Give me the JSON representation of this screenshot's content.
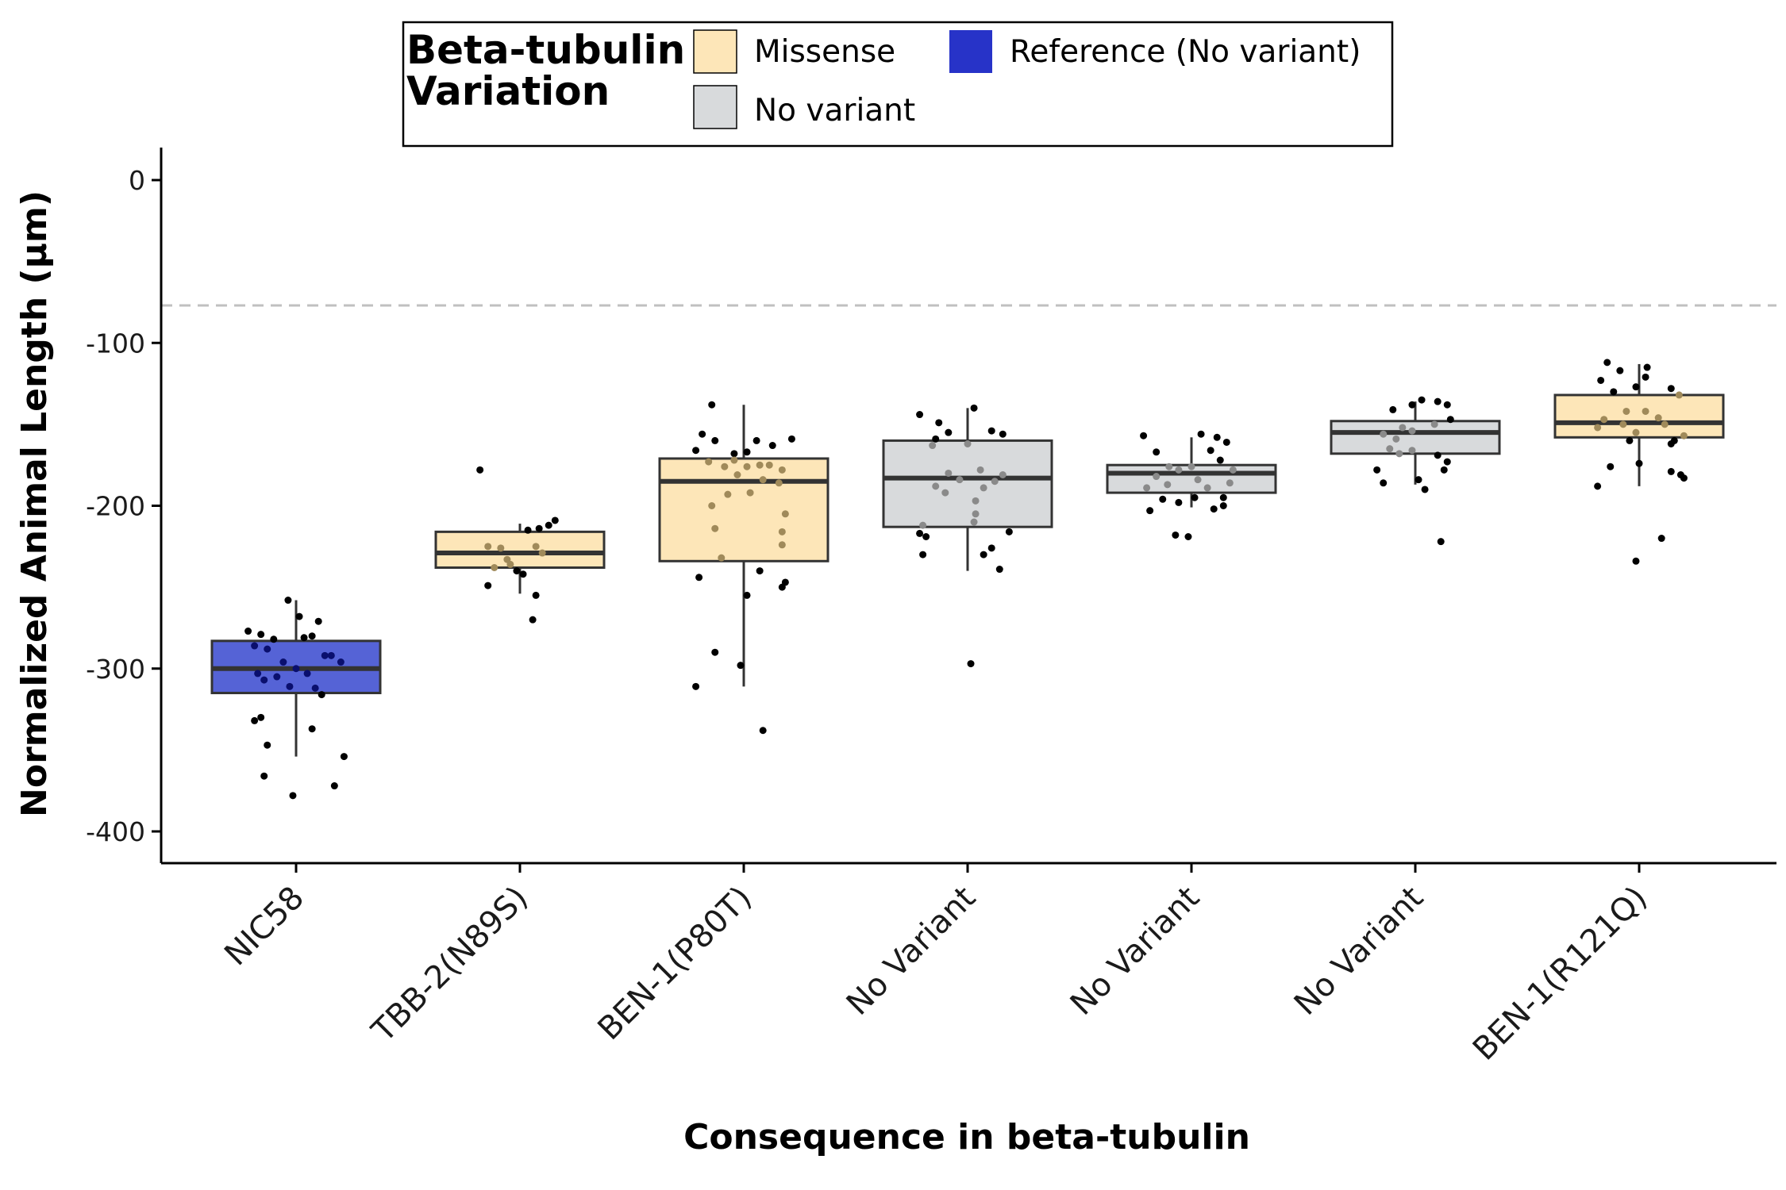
{
  "chart_data": {
    "type": "boxplot",
    "title": "",
    "xlabel": "Consequence in beta-tubulin",
    "ylabel": "Normalized Animal Length (µm)",
    "ylim": [
      -420,
      20
    ],
    "yticks": [
      0,
      -100,
      -200,
      -300,
      -400
    ],
    "grid": false,
    "reference_line": {
      "y": -77,
      "style": "dashed",
      "color": "#c0c0c0"
    },
    "legend": {
      "title_lines": [
        "Beta-tubulin",
        "Variation"
      ],
      "placement": "top",
      "entries": [
        {
          "label": "Missense",
          "color": "#fde6b8"
        },
        {
          "label": "No variant",
          "color": "#d8dadc"
        },
        {
          "label": "Reference (No variant)",
          "color": "#2733c8"
        }
      ]
    },
    "categories": [
      "NIC58",
      "TBB-2(N89S)",
      "BEN-1(P80T)",
      "No Variant",
      "No Variant",
      "No Variant",
      "BEN-1(R121Q)"
    ],
    "boxes": [
      {
        "category": "NIC58",
        "group": "Reference (No variant)",
        "fill": "#5563d6",
        "q1": -315,
        "median": -300,
        "q3": -283,
        "whisker_low": -354,
        "whisker_high": -258,
        "points": [
          [
            -0.3,
            -277
          ],
          [
            -0.22,
            -279
          ],
          [
            -0.14,
            -282
          ],
          [
            -0.05,
            -258
          ],
          [
            0.02,
            -268
          ],
          [
            0.1,
            -280
          ],
          [
            0.14,
            -271
          ],
          [
            0.22,
            -292
          ],
          [
            0.28,
            -296
          ],
          [
            -0.26,
            -286
          ],
          [
            -0.18,
            -288
          ],
          [
            -0.08,
            -296
          ],
          [
            0.05,
            -281
          ],
          [
            0.18,
            -292
          ],
          [
            -0.24,
            -303
          ],
          [
            -0.12,
            -305
          ],
          [
            0.0,
            -300
          ],
          [
            0.07,
            -303
          ],
          [
            0.12,
            -312
          ],
          [
            -0.2,
            -307
          ],
          [
            -0.04,
            -311
          ],
          [
            0.16,
            -316
          ],
          [
            -0.22,
            -330
          ],
          [
            -0.26,
            -332
          ],
          [
            0.1,
            -337
          ],
          [
            -0.18,
            -347
          ],
          [
            0.3,
            -354
          ],
          [
            -0.2,
            -366
          ],
          [
            0.24,
            -372
          ],
          [
            -0.02,
            -378
          ]
        ]
      },
      {
        "category": "TBB-2(N89S)",
        "group": "Missense",
        "fill": "#fde6b8",
        "q1": -238,
        "median": -229,
        "q3": -216,
        "whisker_low": -254,
        "whisker_high": -211,
        "points": [
          [
            -0.25,
            -178
          ],
          [
            0.05,
            -215
          ],
          [
            0.12,
            -214
          ],
          [
            0.22,
            -209
          ],
          [
            0.18,
            -212
          ],
          [
            -0.2,
            -225
          ],
          [
            -0.12,
            -226
          ],
          [
            0.1,
            -225
          ],
          [
            0.14,
            -229
          ],
          [
            -0.08,
            -233
          ],
          [
            -0.16,
            -238
          ],
          [
            -0.02,
            -240
          ],
          [
            0.02,
            -242
          ],
          [
            -0.2,
            -249
          ],
          [
            0.1,
            -255
          ],
          [
            0.08,
            -270
          ],
          [
            -0.06,
            -236
          ]
        ]
      },
      {
        "category": "BEN-1(P80T)",
        "group": "Missense",
        "fill": "#fde6b8",
        "q1": -234,
        "median": -185,
        "q3": -171,
        "whisker_low": -311,
        "whisker_high": -138,
        "points": [
          [
            -0.2,
            -138
          ],
          [
            -0.26,
            -156
          ],
          [
            0.08,
            -160
          ],
          [
            0.18,
            -163
          ],
          [
            0.3,
            -159
          ],
          [
            -0.18,
            -160
          ],
          [
            -0.06,
            -168
          ],
          [
            0.02,
            -167
          ],
          [
            -0.3,
            -166
          ],
          [
            -0.22,
            -173
          ],
          [
            -0.12,
            -176
          ],
          [
            -0.06,
            -172
          ],
          [
            0.02,
            -176
          ],
          [
            0.1,
            -175
          ],
          [
            0.16,
            -175
          ],
          [
            0.24,
            -178
          ],
          [
            -0.04,
            -181
          ],
          [
            0.12,
            -184
          ],
          [
            0.22,
            -186
          ],
          [
            -0.1,
            -193
          ],
          [
            0.04,
            -192
          ],
          [
            -0.2,
            -200
          ],
          [
            0.26,
            -205
          ],
          [
            -0.18,
            -214
          ],
          [
            0.24,
            -216
          ],
          [
            0.24,
            -224
          ],
          [
            -0.14,
            -232
          ],
          [
            0.1,
            -240
          ],
          [
            -0.28,
            -244
          ],
          [
            0.26,
            -247
          ],
          [
            0.24,
            -250
          ],
          [
            0.02,
            -255
          ],
          [
            -0.18,
            -290
          ],
          [
            -0.02,
            -298
          ],
          [
            -0.3,
            -311
          ],
          [
            0.12,
            -338
          ]
        ]
      },
      {
        "category": "No Variant",
        "group": "No variant",
        "fill": "#d8dadc",
        "q1": -213,
        "median": -183,
        "q3": -160,
        "whisker_low": -240,
        "whisker_high": -140,
        "points": [
          [
            0.04,
            -140
          ],
          [
            -0.3,
            -144
          ],
          [
            -0.18,
            -149
          ],
          [
            -0.12,
            -155
          ],
          [
            -0.2,
            -159
          ],
          [
            0.15,
            -154
          ],
          [
            0.22,
            -156
          ],
          [
            0.0,
            -162
          ],
          [
            -0.22,
            -163
          ],
          [
            0.08,
            -178
          ],
          [
            -0.12,
            -180
          ],
          [
            0.22,
            -181
          ],
          [
            -0.05,
            -184
          ],
          [
            0.17,
            -185
          ],
          [
            -0.2,
            -188
          ],
          [
            0.1,
            -189
          ],
          [
            -0.14,
            -192
          ],
          [
            0.05,
            -197
          ],
          [
            0.05,
            -205
          ],
          [
            0.04,
            -210
          ],
          [
            -0.28,
            -212
          ],
          [
            -0.3,
            -217
          ],
          [
            -0.26,
            -219
          ],
          [
            0.26,
            -216
          ],
          [
            0.15,
            -226
          ],
          [
            0.1,
            -230
          ],
          [
            -0.28,
            -230
          ],
          [
            0.2,
            -239
          ],
          [
            0.02,
            -297
          ]
        ]
      },
      {
        "category": "No Variant",
        "group": "No variant",
        "fill": "#d8dadc",
        "q1": -192,
        "median": -180,
        "q3": -175,
        "whisker_low": -201,
        "whisker_high": -158,
        "points": [
          [
            -0.3,
            -157
          ],
          [
            0.06,
            -156
          ],
          [
            0.16,
            -158
          ],
          [
            0.22,
            -161
          ],
          [
            -0.22,
            -167
          ],
          [
            0.12,
            -166
          ],
          [
            -0.14,
            -176
          ],
          [
            0.0,
            -176
          ],
          [
            -0.08,
            -178
          ],
          [
            0.18,
            -172
          ],
          [
            0.26,
            -178
          ],
          [
            -0.22,
            -182
          ],
          [
            0.04,
            -184
          ],
          [
            -0.15,
            -187
          ],
          [
            0.24,
            -186
          ],
          [
            -0.28,
            -189
          ],
          [
            0.1,
            -189
          ],
          [
            0.2,
            -195
          ],
          [
            -0.18,
            -196
          ],
          [
            -0.08,
            -198
          ],
          [
            0.14,
            -202
          ],
          [
            0.2,
            -200
          ],
          [
            -0.26,
            -203
          ],
          [
            0.02,
            -195
          ],
          [
            -0.1,
            -218
          ],
          [
            -0.02,
            -219
          ]
        ]
      },
      {
        "category": "No Variant",
        "group": "No variant",
        "fill": "#d8dadc",
        "q1": -168,
        "median": -155,
        "q3": -148,
        "whisker_low": -187,
        "whisker_high": -136,
        "points": [
          [
            -0.02,
            -138
          ],
          [
            0.04,
            -135
          ],
          [
            0.14,
            -136
          ],
          [
            0.2,
            -138
          ],
          [
            -0.14,
            -141
          ],
          [
            0.22,
            -147
          ],
          [
            -0.08,
            -152
          ],
          [
            0.12,
            -150
          ],
          [
            -0.02,
            -154
          ],
          [
            -0.2,
            -156
          ],
          [
            -0.12,
            -159
          ],
          [
            -0.16,
            -165
          ],
          [
            -0.1,
            -168
          ],
          [
            -0.02,
            -166
          ],
          [
            0.14,
            -169
          ],
          [
            0.2,
            -173
          ],
          [
            -0.24,
            -178
          ],
          [
            0.18,
            -178
          ],
          [
            -0.2,
            -186
          ],
          [
            0.02,
            -184
          ],
          [
            0.06,
            -190
          ],
          [
            0.16,
            -222
          ]
        ]
      },
      {
        "category": "BEN-1(R121Q)",
        "group": "Missense",
        "fill": "#fde6b8",
        "q1": -158,
        "median": -149,
        "q3": -132,
        "whisker_low": -188,
        "whisker_high": -113,
        "points": [
          [
            -0.2,
            -112
          ],
          [
            0.05,
            -115
          ],
          [
            -0.12,
            -117
          ],
          [
            0.04,
            -121
          ],
          [
            -0.24,
            -123
          ],
          [
            -0.02,
            -127
          ],
          [
            -0.16,
            -130
          ],
          [
            0.2,
            -128
          ],
          [
            0.25,
            -132
          ],
          [
            -0.08,
            -142
          ],
          [
            0.04,
            -142
          ],
          [
            -0.22,
            -147
          ],
          [
            0.12,
            -146
          ],
          [
            -0.1,
            -150
          ],
          [
            0.16,
            -150
          ],
          [
            -0.26,
            -152
          ],
          [
            -0.02,
            -155
          ],
          [
            0.28,
            -157
          ],
          [
            -0.06,
            -160
          ],
          [
            0.22,
            -160
          ],
          [
            0.2,
            -162
          ],
          [
            -0.18,
            -176
          ],
          [
            0.0,
            -174
          ],
          [
            0.2,
            -179
          ],
          [
            0.26,
            -181
          ],
          [
            0.28,
            -183
          ],
          [
            -0.26,
            -188
          ],
          [
            0.14,
            -220
          ],
          [
            -0.02,
            -234
          ]
        ]
      }
    ]
  }
}
